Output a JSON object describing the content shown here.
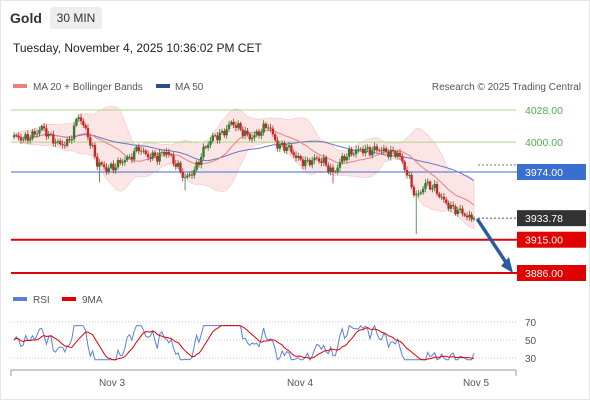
{
  "header": {
    "instrument": "Gold",
    "timeframe": "30 MIN",
    "timestamp": "Tuesday, November 4, 2025 10:36:02 PM CET"
  },
  "legend": {
    "ma20": "MA 20 + Bollinger Bands",
    "ma50": "MA 50",
    "copyright": "Research © 2025 Trading Central"
  },
  "rsi_legend": {
    "rsi": "RSI",
    "ma9": "9MA"
  },
  "colors": {
    "bullish": "#2e7d32",
    "bearish": "#c62828",
    "resistance": "#aed48b",
    "resistance_text": "#4caf50",
    "pivot": "#3a6fd0",
    "support": "#e00000",
    "current": "#333333",
    "ma20": "#e88080",
    "ma50": "#6a73c8",
    "band": "#fbe0e0",
    "arrow": "#2a5da0",
    "rsi": "#5b7fd8",
    "rsi_ma": "#e00000"
  },
  "chart_data": {
    "type": "candlestick",
    "x_ticks": [
      "Nov 3",
      "Nov 4",
      "Nov 5"
    ],
    "y_range": [
      3865,
      4062
    ],
    "levels": [
      {
        "label": "4028.00",
        "value": 4028,
        "kind": "resistance"
      },
      {
        "label": "4000.00",
        "value": 4000,
        "kind": "resistance"
      },
      {
        "label": "3974.00",
        "value": 3974,
        "kind": "pivot"
      },
      {
        "label": "3933.78",
        "value": 3933.78,
        "kind": "current"
      },
      {
        "label": "3915.00",
        "value": 3915,
        "kind": "support"
      },
      {
        "label": "3886.00",
        "value": 3886,
        "kind": "support"
      }
    ],
    "projection": {
      "from": 3933.78,
      "to": 3886
    },
    "rsi_ticks": [
      "70",
      "50",
      "30"
    ]
  }
}
